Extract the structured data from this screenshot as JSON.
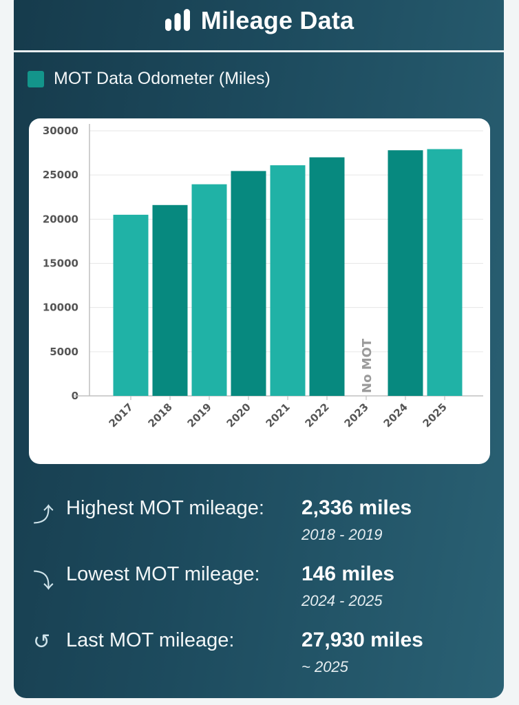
{
  "header": {
    "title": "Mileage Data",
    "icon": "bar-chart-icon"
  },
  "legend": {
    "label": "MOT Data Odometer (Miles)",
    "color": "#13958b"
  },
  "chart_data": {
    "type": "bar",
    "title": "",
    "xlabel": "",
    "ylabel": "",
    "ylim": [
      0,
      30000
    ],
    "yticks": [
      "0",
      "5000",
      "10000",
      "15000",
      "20000",
      "25000",
      "30000"
    ],
    "categories": [
      "2017",
      "2018",
      "2019",
      "2020",
      "2021",
      "2022",
      "2023",
      "2024",
      "2025"
    ],
    "series": [
      {
        "name": "MOT Data Odometer (Miles)",
        "values": [
          20500,
          21600,
          23950,
          25450,
          26100,
          27000,
          null,
          27800,
          27930
        ]
      }
    ],
    "annotations": [
      {
        "category": "2023",
        "text": "No MOT"
      }
    ],
    "colors": [
      "#20b2a6",
      "#07897f"
    ],
    "grid": true
  },
  "stats": [
    {
      "icon": "arrow-up-icon",
      "glyph": "⤴",
      "label": "Highest MOT mileage:",
      "value": "2,336 miles",
      "sub": "2018 - 2019"
    },
    {
      "icon": "arrow-down-icon",
      "glyph": "⤵",
      "label": "Lowest MOT mileage:",
      "value": "146 miles",
      "sub": "2024 - 2025"
    },
    {
      "icon": "history-icon",
      "glyph": "↺",
      "label": "Last MOT mileage:",
      "value": "27,930 miles",
      "sub": "~ 2025"
    }
  ]
}
